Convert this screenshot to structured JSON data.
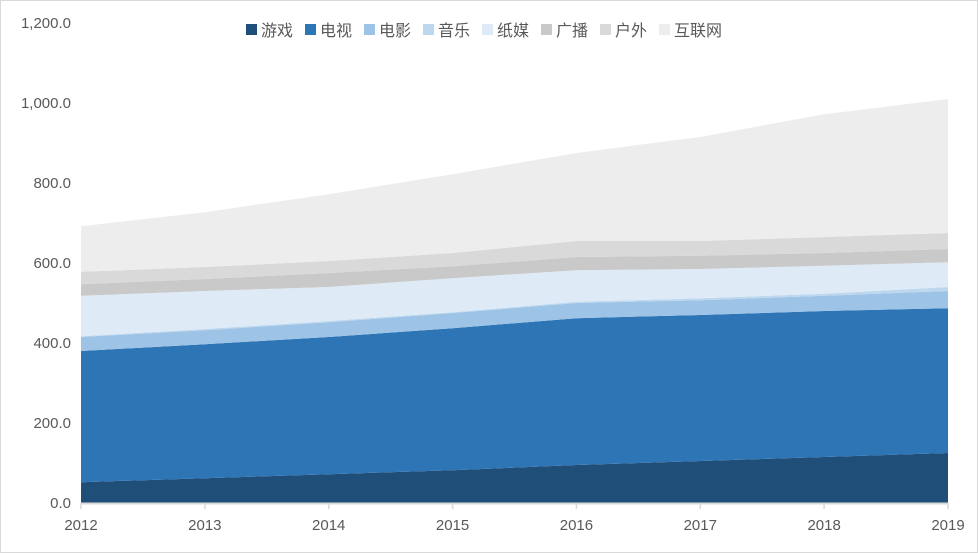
{
  "chart_data": {
    "type": "area",
    "stacked": true,
    "title": "",
    "xlabel": "",
    "ylabel": "",
    "categories": [
      "2012",
      "2013",
      "2014",
      "2015",
      "2016",
      "2017",
      "2018",
      "2019"
    ],
    "ylim": [
      0,
      1200
    ],
    "yticks": [
      "0.0",
      "200.0",
      "400.0",
      "600.0",
      "800.0",
      "1,000.0",
      "1,200.0"
    ],
    "grid": false,
    "legend_position": "top",
    "series": [
      {
        "name": "游戏",
        "color": "#1f4e79",
        "values": [
          52,
          62,
          72,
          82,
          95,
          105,
          115,
          125
        ]
      },
      {
        "name": "电视",
        "color": "#2e75b6",
        "values": [
          328,
          335,
          343,
          355,
          367,
          365,
          365,
          362
        ]
      },
      {
        "name": "电影",
        "color": "#9dc3e6",
        "values": [
          35,
          35,
          37,
          38,
          38,
          37,
          38,
          43
        ]
      },
      {
        "name": "音乐",
        "color": "#bdd7ee",
        "values": [
          2,
          3,
          3,
          2,
          3,
          5,
          5,
          10
        ]
      },
      {
        "name": "纸媒",
        "color": "#deebf7",
        "values": [
          101,
          95,
          85,
          85,
          79,
          73,
          70,
          62
        ]
      },
      {
        "name": "广播",
        "color": "#c9c9c9",
        "values": [
          29,
          30,
          35,
          30,
          33,
          33,
          32,
          33
        ]
      },
      {
        "name": "户外",
        "color": "#d9d9d9",
        "values": [
          31,
          30,
          30,
          33,
          40,
          37,
          40,
          40
        ]
      },
      {
        "name": "互联网",
        "color": "#ededed",
        "values": [
          114,
          137,
          167,
          197,
          220,
          260,
          307,
          335
        ]
      }
    ]
  }
}
